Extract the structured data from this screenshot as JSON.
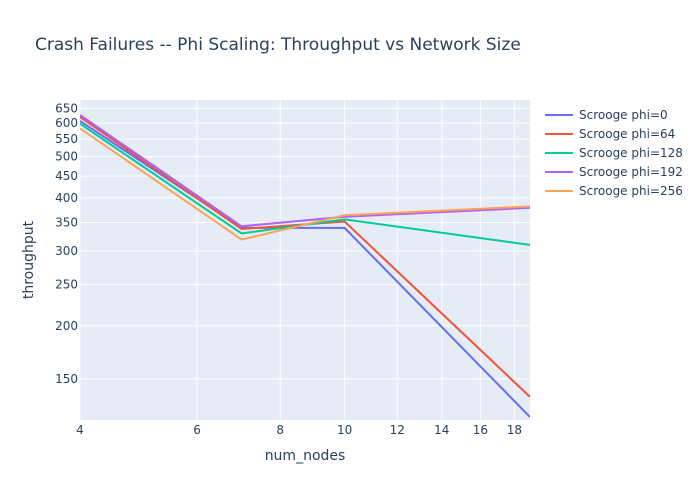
{
  "chart_data": {
    "type": "line",
    "title": "Crash Failures -- Phi Scaling: Throughput vs Network Size",
    "xlabel": "num_nodes",
    "ylabel": "throughput",
    "x_scale": "log",
    "y_scale": "log",
    "xlim": [
      4,
      19
    ],
    "ylim": [
      120,
      680
    ],
    "x_ticks": [
      4,
      6,
      8,
      10,
      12,
      14,
      16,
      18
    ],
    "y_ticks": [
      150,
      200,
      250,
      300,
      350,
      400,
      450,
      500,
      550,
      600,
      650
    ],
    "grid": true,
    "legend_position": "right",
    "background": "#E5ECF6",
    "x": [
      4,
      7,
      10,
      19
    ],
    "series": [
      {
        "name": "Scrooge phi=0",
        "color": "#636EFA",
        "values": [
          607,
          340,
          340,
          122
        ]
      },
      {
        "name": "Scrooge phi=64",
        "color": "#EF553B",
        "values": [
          620,
          338,
          352,
          136
        ]
      },
      {
        "name": "Scrooge phi=128",
        "color": "#00CC96",
        "values": [
          598,
          330,
          356,
          310
        ]
      },
      {
        "name": "Scrooge phi=192",
        "color": "#AB63FA",
        "values": [
          627,
          343,
          361,
          379
        ]
      },
      {
        "name": "Scrooge phi=256",
        "color": "#FFA15A",
        "values": [
          583,
          319,
          364,
          382
        ]
      }
    ]
  }
}
